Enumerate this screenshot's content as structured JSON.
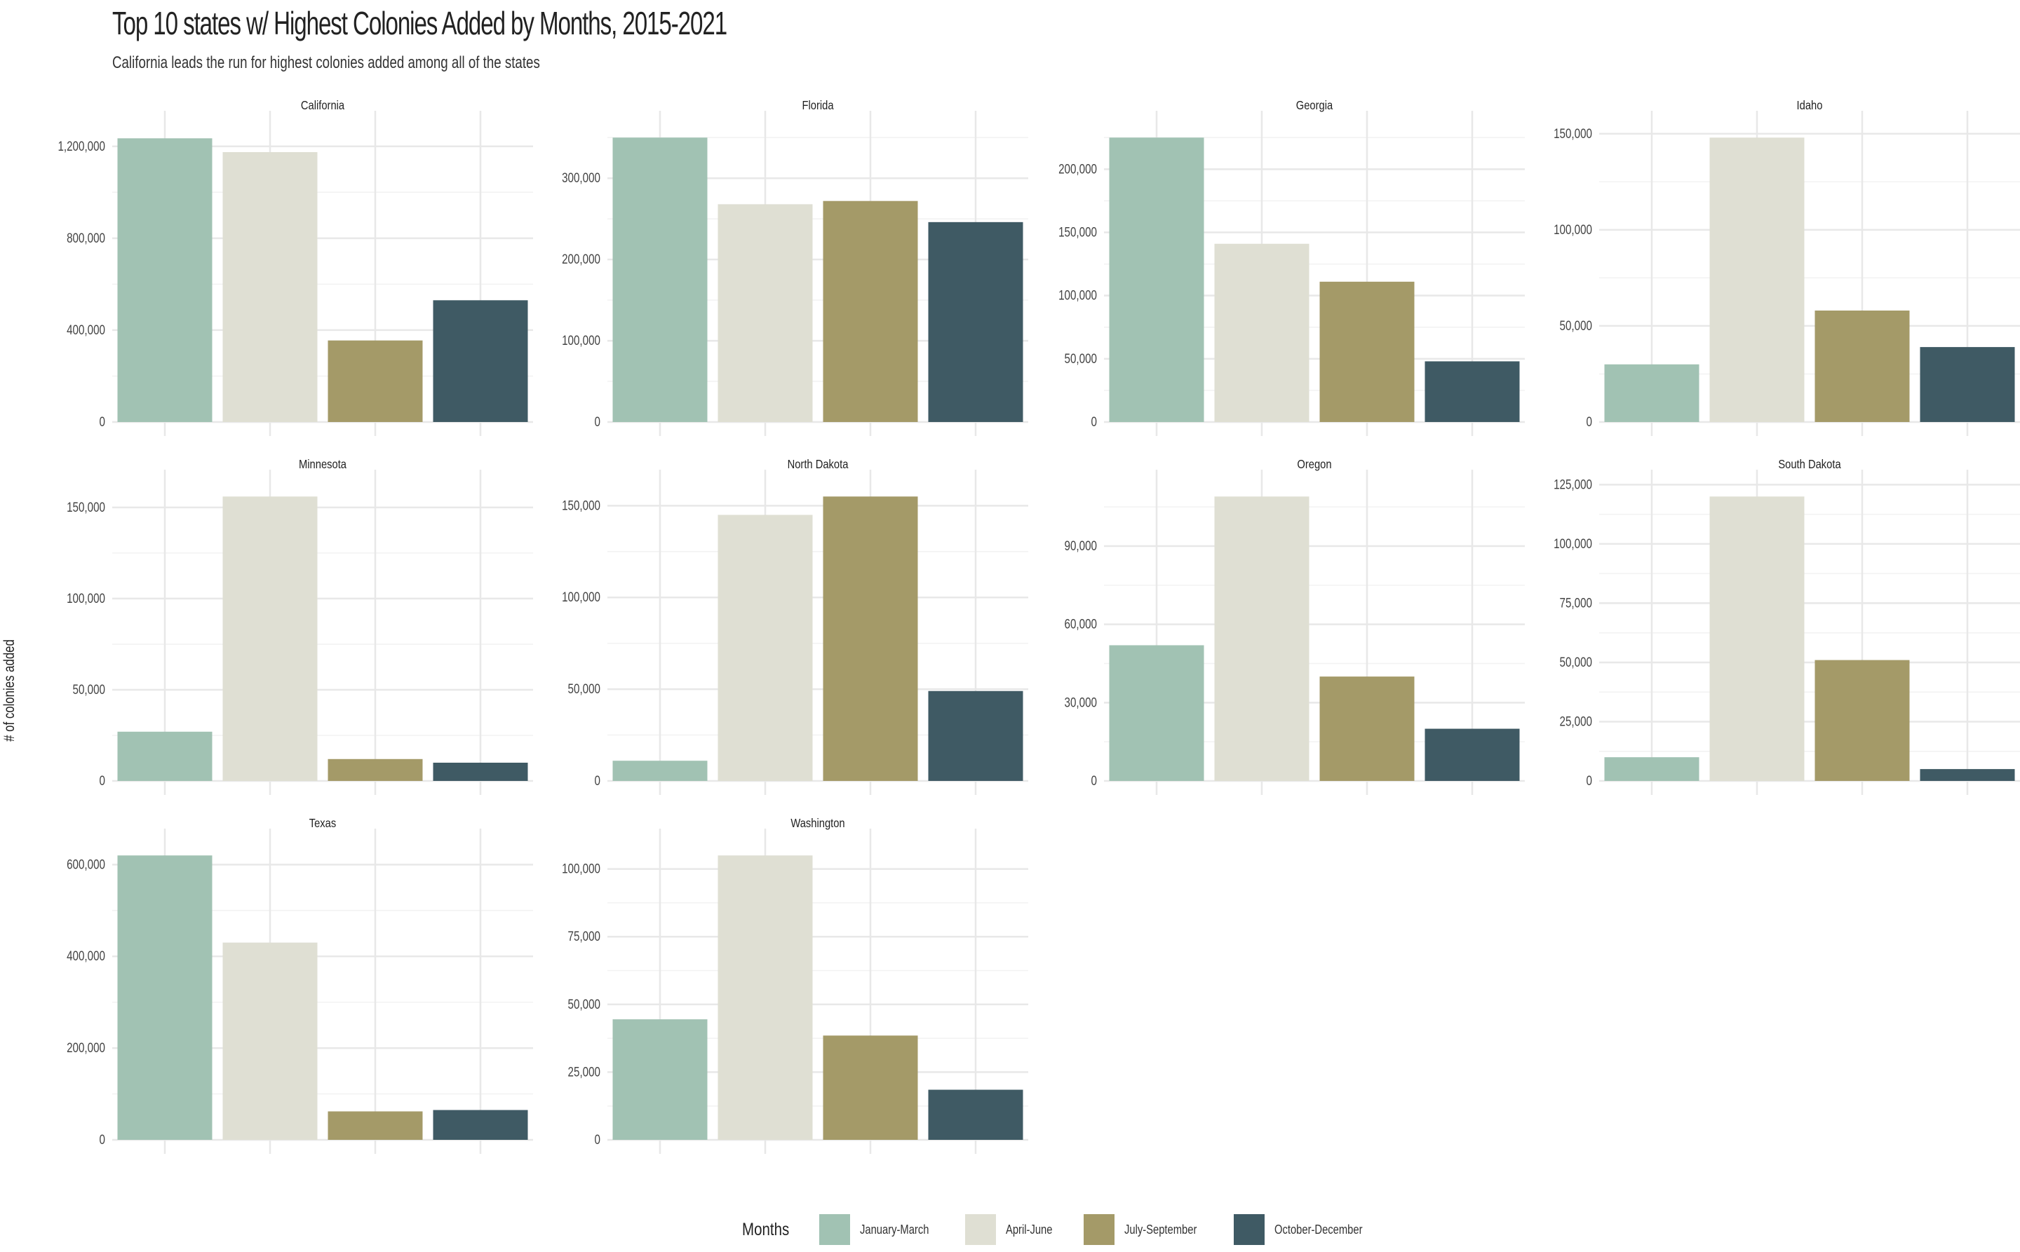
{
  "title": "Top 10 states w/ Highest Colonies Added by Months, 2015-2021",
  "subtitle": "California leads the run for highest colonies added among all of the states",
  "chart_data": {
    "type": "bar",
    "ylabel": "# of colonies added",
    "xlabel": "",
    "categories": [
      "January-March",
      "April-June",
      "July-September",
      "October-December"
    ],
    "legend": {
      "title": "Months",
      "position": "bottom",
      "entries": [
        "January-March",
        "April-June",
        "July-September",
        "October-December"
      ]
    },
    "colors": {
      "January-March": "#a1c2b3",
      "April-June": "#dfdfd3",
      "July-September": "#a49a68",
      "October-December": "#3f5a64"
    },
    "grid": true,
    "facets": [
      {
        "state": "California",
        "values": [
          1235000,
          1175000,
          355000,
          530000
        ],
        "ticks": [
          0,
          400000,
          800000,
          1200000
        ],
        "tick_labels": [
          "0",
          "400,000",
          "800,000",
          "1,200,000"
        ],
        "ylim": [
          0,
          1300000
        ]
      },
      {
        "state": "Florida",
        "values": [
          350000,
          268000,
          272000,
          246000
        ],
        "ticks": [
          0,
          100000,
          200000,
          300000
        ],
        "tick_labels": [
          "0",
          "100,000",
          "200,000",
          "300,000"
        ],
        "ylim": [
          0,
          367500
        ]
      },
      {
        "state": "Georgia",
        "values": [
          225000,
          141000,
          111000,
          48000
        ],
        "ticks": [
          0,
          50000,
          100000,
          150000,
          200000
        ],
        "tick_labels": [
          "0",
          "50,000",
          "100,000",
          "150,000",
          "200,000"
        ],
        "ylim": [
          0,
          236250
        ]
      },
      {
        "state": "Idaho",
        "values": [
          30000,
          148000,
          58000,
          39000
        ],
        "ticks": [
          0,
          50000,
          100000,
          150000
        ],
        "tick_labels": [
          "0",
          "50,000",
          "100,000",
          "150,000"
        ],
        "ylim": [
          0,
          155400
        ]
      },
      {
        "state": "Minnesota",
        "values": [
          27000,
          156000,
          12000,
          10000
        ],
        "ticks": [
          0,
          50000,
          100000,
          150000
        ],
        "tick_labels": [
          "0",
          "50,000",
          "100,000",
          "150,000"
        ],
        "ylim": [
          0,
          163800
        ]
      },
      {
        "state": "North Dakota",
        "values": [
          11000,
          145000,
          155000,
          49000
        ],
        "ticks": [
          0,
          50000,
          100000,
          150000
        ],
        "tick_labels": [
          "0",
          "50,000",
          "100,000",
          "150,000"
        ],
        "ylim": [
          0,
          162750
        ]
      },
      {
        "state": "Oregon",
        "values": [
          52000,
          109000,
          40000,
          20000
        ],
        "ticks": [
          0,
          30000,
          60000,
          90000
        ],
        "tick_labels": [
          "0",
          "30,000",
          "60,000",
          "90,000"
        ],
        "ylim": [
          0,
          114450
        ]
      },
      {
        "state": "South Dakota",
        "values": [
          10000,
          120000,
          51000,
          5000
        ],
        "ticks": [
          0,
          25000,
          50000,
          75000,
          100000,
          125000
        ],
        "tick_labels": [
          "0",
          "25,000",
          "50,000",
          "75,000",
          "100,000",
          "125,000"
        ],
        "ylim": [
          0,
          126000
        ]
      },
      {
        "state": "Texas",
        "values": [
          620000,
          430000,
          62000,
          65000
        ],
        "ticks": [
          0,
          200000,
          400000,
          600000
        ],
        "tick_labels": [
          "0",
          "200,000",
          "400,000",
          "600,000"
        ],
        "ylim": [
          0,
          651000
        ]
      },
      {
        "state": "Washington",
        "values": [
          44500,
          105000,
          38500,
          18500
        ],
        "ticks": [
          0,
          25000,
          50000,
          75000,
          100000
        ],
        "tick_labels": [
          "0",
          "25,000",
          "50,000",
          "75,000",
          "100,000"
        ],
        "ylim": [
          0,
          110250
        ]
      }
    ]
  }
}
